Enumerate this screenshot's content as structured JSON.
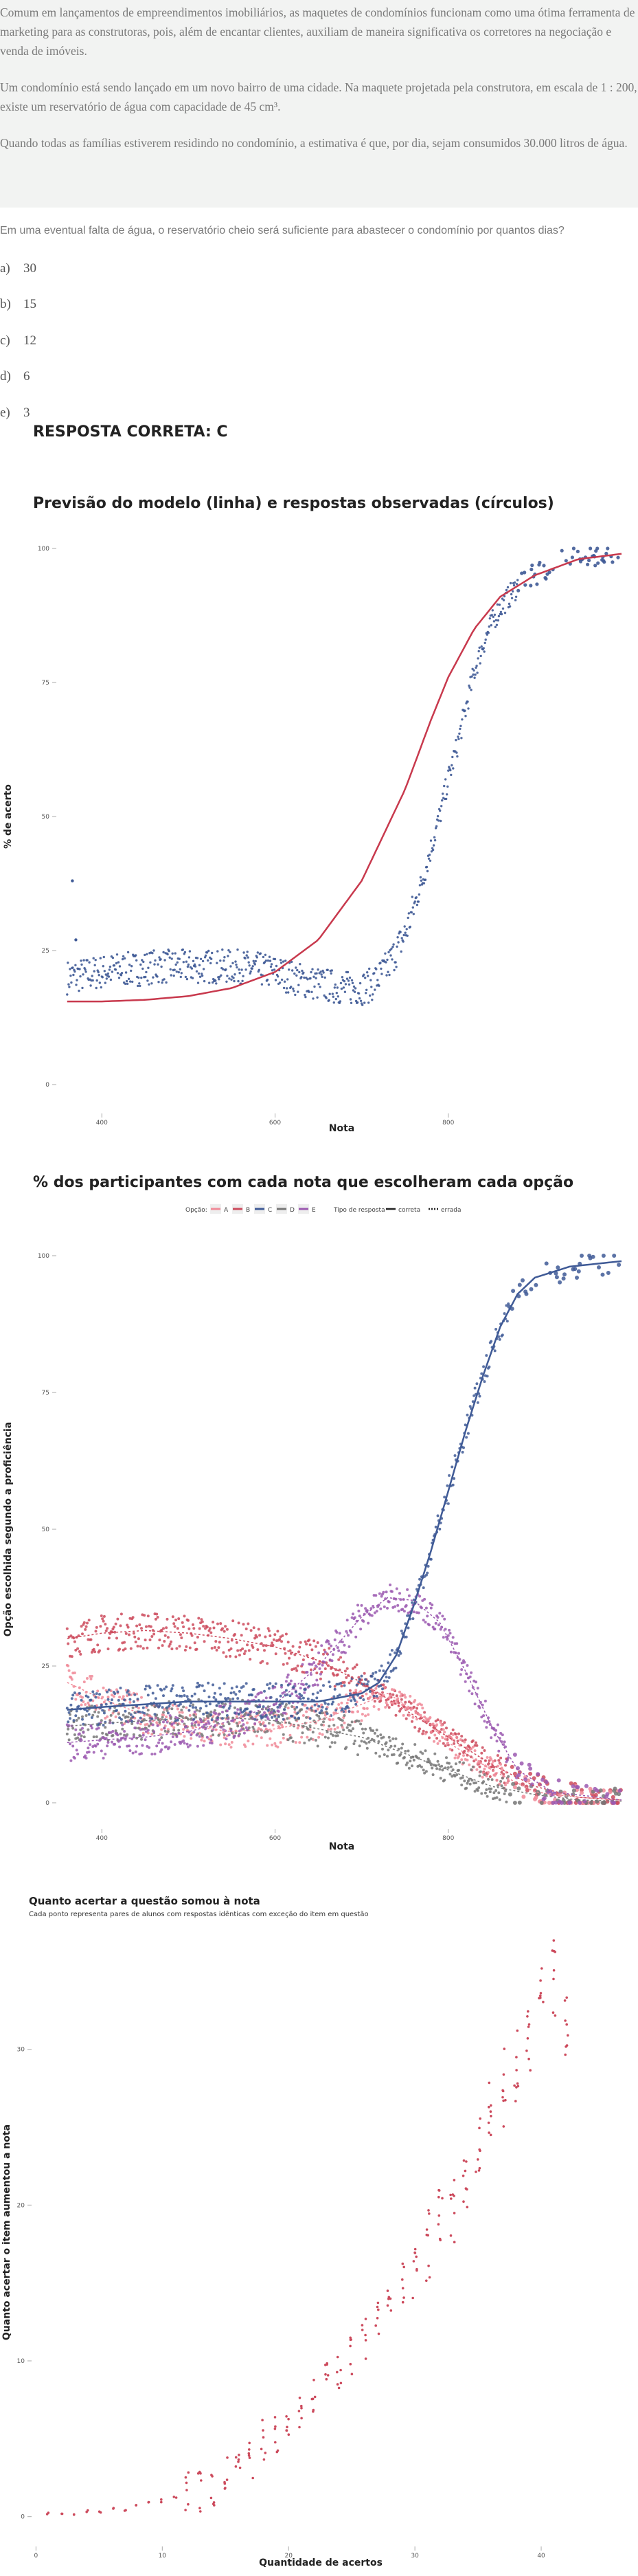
{
  "text": {
    "p1": "Comum em lançamentos de empreendimentos imobiliários, as maquetes de condomínios funcionam como uma ótima ferramenta de marketing para as construtoras, pois, além de encantar clientes, auxiliam de maneira significativa os corretores na negociação e venda de imóveis.",
    "p2": "Um condomínio está sendo lançado em um novo bairro de uma cidade. Na maquete projetada pela construtora, em escala de 1 : 200, existe um reservatório de água com capacidade de 45 cm³.",
    "p3": "Quando todas as famílias estiverem residindo no condomínio, a estimativa é que, por dia, sejam consumidos 30.000 litros de água.",
    "question": "Em uma eventual falta de água, o reservatório cheio será suficiente para abastecer o condomínio por quantos dias?",
    "options": [
      {
        "letter": "a)",
        "value": "30"
      },
      {
        "letter": "b)",
        "value": "15"
      },
      {
        "letter": "c)",
        "value": "12"
      },
      {
        "letter": "d)",
        "value": "6"
      },
      {
        "letter": "e)",
        "value": "3"
      }
    ],
    "answer": "RESPOSTA CORRETA: C"
  },
  "colors": {
    "model_line": "#c8394d",
    "observed": "#3f5a96",
    "A": "#f08a98",
    "B": "#cc4a5c",
    "C": "#3f5a96",
    "D": "#777777",
    "E": "#9b59b0",
    "chart3_points": "#cc4a5c"
  },
  "chart_data": [
    {
      "type": "scatter",
      "title": "Previsão do modelo (linha) e respostas observadas (círculos)",
      "xlabel": "Nota",
      "ylabel": "% de acerto",
      "x_ticks": [
        "400",
        "600",
        "800"
      ],
      "x_tick_values": [
        400,
        600,
        800
      ],
      "y_ticks": [
        "0",
        "25",
        "50",
        "75",
        "100"
      ],
      "y_tick_values": [
        0,
        25,
        50,
        75,
        100
      ],
      "xlim": [
        330,
        1000
      ],
      "ylim": [
        0,
        100
      ],
      "series": [
        {
          "kind": "line",
          "points": [
            [
              360,
              15.5
            ],
            [
              400,
              15.5
            ],
            [
              450,
              15.8
            ],
            [
              500,
              16.5
            ],
            [
              550,
              18
            ],
            [
              600,
              21
            ],
            [
              650,
              27
            ],
            [
              700,
              38
            ],
            [
              750,
              55
            ],
            [
              780,
              68
            ],
            [
              800,
              76
            ],
            [
              830,
              85
            ],
            [
              860,
              91
            ],
            [
              900,
              95
            ],
            [
              950,
              98
            ],
            [
              1000,
              99
            ]
          ]
        },
        {
          "kind": "points",
          "points": [
            [
              360,
              20
            ],
            [
              380,
              20.5
            ],
            [
              400,
              21
            ],
            [
              420,
              21.5
            ],
            [
              440,
              21.5
            ],
            [
              460,
              22
            ],
            [
              480,
              22
            ],
            [
              500,
              22
            ],
            [
              520,
              22
            ],
            [
              540,
              22
            ],
            [
              560,
              22
            ],
            [
              580,
              21.5
            ],
            [
              600,
              21
            ],
            [
              620,
              20
            ],
            [
              640,
              19
            ],
            [
              660,
              18.5
            ],
            [
              680,
              18
            ],
            [
              700,
              18
            ],
            [
              710,
              18.5
            ],
            [
              720,
              20
            ],
            [
              730,
              22
            ],
            [
              740,
              25
            ],
            [
              750,
              28
            ],
            [
              760,
              33
            ],
            [
              770,
              38
            ],
            [
              780,
              44
            ],
            [
              790,
              50
            ],
            [
              800,
              57
            ],
            [
              810,
              63
            ],
            [
              820,
              70
            ],
            [
              830,
              77
            ],
            [
              840,
              82
            ],
            [
              850,
              86
            ],
            [
              860,
              89
            ],
            [
              870,
              91
            ],
            [
              880,
              93
            ],
            [
              890,
              94
            ],
            [
              900,
              95
            ],
            [
              920,
              97
            ],
            [
              940,
              98
            ],
            [
              970,
              99
            ],
            [
              1000,
              99
            ],
            [
              366,
              38
            ],
            [
              370,
              27
            ]
          ]
        }
      ]
    },
    {
      "type": "scatter",
      "title": "% dos participantes com cada nota que escolheram cada opção",
      "xlabel": "Nota",
      "ylabel": "Opção escolhida segundo a proficiência",
      "legend": {
        "option_label": "Opção:",
        "options": [
          "A",
          "B",
          "C",
          "D",
          "E"
        ],
        "type_label": "Tipo de resposta",
        "types": [
          "correta",
          "errada"
        ]
      },
      "x_ticks": [
        "400",
        "600",
        "800"
      ],
      "x_tick_values": [
        400,
        600,
        800
      ],
      "y_ticks": [
        "0",
        "25",
        "50",
        "75",
        "100"
      ],
      "y_tick_values": [
        0,
        25,
        50,
        75,
        100
      ],
      "xlim": [
        330,
        1000
      ],
      "ylim": [
        0,
        100
      ],
      "series": [
        {
          "name": "A",
          "points": [
            [
              360,
              22
            ],
            [
              400,
              19
            ],
            [
              450,
              16
            ],
            [
              500,
              14
            ],
            [
              550,
              13
            ],
            [
              600,
              13.5
            ],
            [
              650,
              15
            ],
            [
              700,
              18
            ],
            [
              730,
              20
            ],
            [
              760,
              17
            ],
            [
              800,
              11
            ],
            [
              850,
              6
            ],
            [
              900,
              2
            ],
            [
              950,
              1
            ],
            [
              1000,
              0.5
            ]
          ]
        },
        {
          "name": "B",
          "points": [
            [
              360,
              30
            ],
            [
              400,
              31
            ],
            [
              450,
              31.5
            ],
            [
              500,
              31
            ],
            [
              550,
              30
            ],
            [
              600,
              28.5
            ],
            [
              650,
              26
            ],
            [
              700,
              22
            ],
            [
              750,
              17
            ],
            [
              800,
              12
            ],
            [
              850,
              7
            ],
            [
              900,
              3
            ],
            [
              950,
              1
            ],
            [
              1000,
              0.5
            ]
          ]
        },
        {
          "name": "C",
          "points": [
            [
              360,
              17
            ],
            [
              400,
              17.5
            ],
            [
              450,
              18
            ],
            [
              500,
              18.5
            ],
            [
              550,
              18.5
            ],
            [
              600,
              18.5
            ],
            [
              650,
              18.5
            ],
            [
              700,
              20
            ],
            [
              720,
              22
            ],
            [
              740,
              27
            ],
            [
              760,
              36
            ],
            [
              780,
              46
            ],
            [
              800,
              57
            ],
            [
              820,
              68
            ],
            [
              840,
              78
            ],
            [
              860,
              87
            ],
            [
              880,
              93
            ],
            [
              900,
              96
            ],
            [
              940,
              98
            ],
            [
              1000,
              99
            ]
          ]
        },
        {
          "name": "D",
          "points": [
            [
              360,
              14
            ],
            [
              400,
              14.5
            ],
            [
              450,
              15
            ],
            [
              500,
              15.5
            ],
            [
              550,
              15.5
            ],
            [
              600,
              15
            ],
            [
              650,
              13.5
            ],
            [
              700,
              12
            ],
            [
              750,
              9
            ],
            [
              800,
              6
            ],
            [
              850,
              3
            ],
            [
              900,
              1.5
            ],
            [
              950,
              0.5
            ],
            [
              1000,
              0.3
            ]
          ]
        },
        {
          "name": "E",
          "points": [
            [
              360,
              11
            ],
            [
              400,
              11.5
            ],
            [
              450,
              12
            ],
            [
              500,
              13
            ],
            [
              550,
              15
            ],
            [
              600,
              18
            ],
            [
              650,
              25
            ],
            [
              700,
              34
            ],
            [
              730,
              37.5
            ],
            [
              760,
              37
            ],
            [
              790,
              33
            ],
            [
              820,
              24
            ],
            [
              850,
              14
            ],
            [
              880,
              6
            ],
            [
              920,
              2
            ],
            [
              1000,
              0.5
            ]
          ]
        }
      ]
    },
    {
      "type": "scatter",
      "title": "Quanto acertar a questão somou à nota",
      "subtitle": "Cada ponto representa pares de alunos com respostas idênticas com exceção do item em questão",
      "xlabel": "Quantidade de acertos",
      "ylabel": "Quanto acertar o item aumentou a nota",
      "x_ticks": [
        "0",
        "10",
        "20",
        "30",
        "40"
      ],
      "x_tick_values": [
        0,
        10,
        20,
        30,
        40
      ],
      "y_ticks": [
        "0",
        "10",
        "20",
        "30"
      ],
      "y_tick_values": [
        0,
        10,
        20,
        30
      ],
      "xlim": [
        -1,
        45
      ],
      "ylim": [
        -0.5,
        37
      ],
      "points": [
        [
          1,
          0.1
        ],
        [
          2,
          0.15
        ],
        [
          3,
          0.2
        ],
        [
          4,
          0.25
        ],
        [
          5,
          0.3
        ],
        [
          6,
          0.4
        ],
        [
          7,
          0.5
        ],
        [
          8,
          0.6
        ],
        [
          9,
          0.8
        ],
        [
          10,
          1
        ],
        [
          11,
          1.2
        ],
        [
          12,
          1.5
        ],
        [
          13,
          1.7
        ],
        [
          14,
          2.1
        ],
        [
          15,
          2.6
        ],
        [
          16,
          3.2
        ],
        [
          17,
          3.8
        ],
        [
          18,
          4.8
        ],
        [
          19,
          5.5
        ],
        [
          20,
          6.3
        ],
        [
          21,
          7
        ],
        [
          22,
          7.8
        ],
        [
          23,
          8.5
        ],
        [
          24,
          9.5
        ],
        [
          25,
          10.2
        ],
        [
          26,
          11.5
        ],
        [
          27,
          12.5
        ],
        [
          28,
          13.5
        ],
        [
          29,
          15
        ],
        [
          30,
          16
        ],
        [
          31,
          17.5
        ],
        [
          32,
          18.5
        ],
        [
          33,
          20
        ],
        [
          34,
          21.5
        ],
        [
          35,
          23
        ],
        [
          36,
          25.5
        ],
        [
          37,
          27.5
        ],
        [
          38,
          29
        ],
        [
          39,
          31
        ],
        [
          40,
          33
        ],
        [
          41,
          34.5
        ],
        [
          42,
          32
        ]
      ]
    }
  ]
}
